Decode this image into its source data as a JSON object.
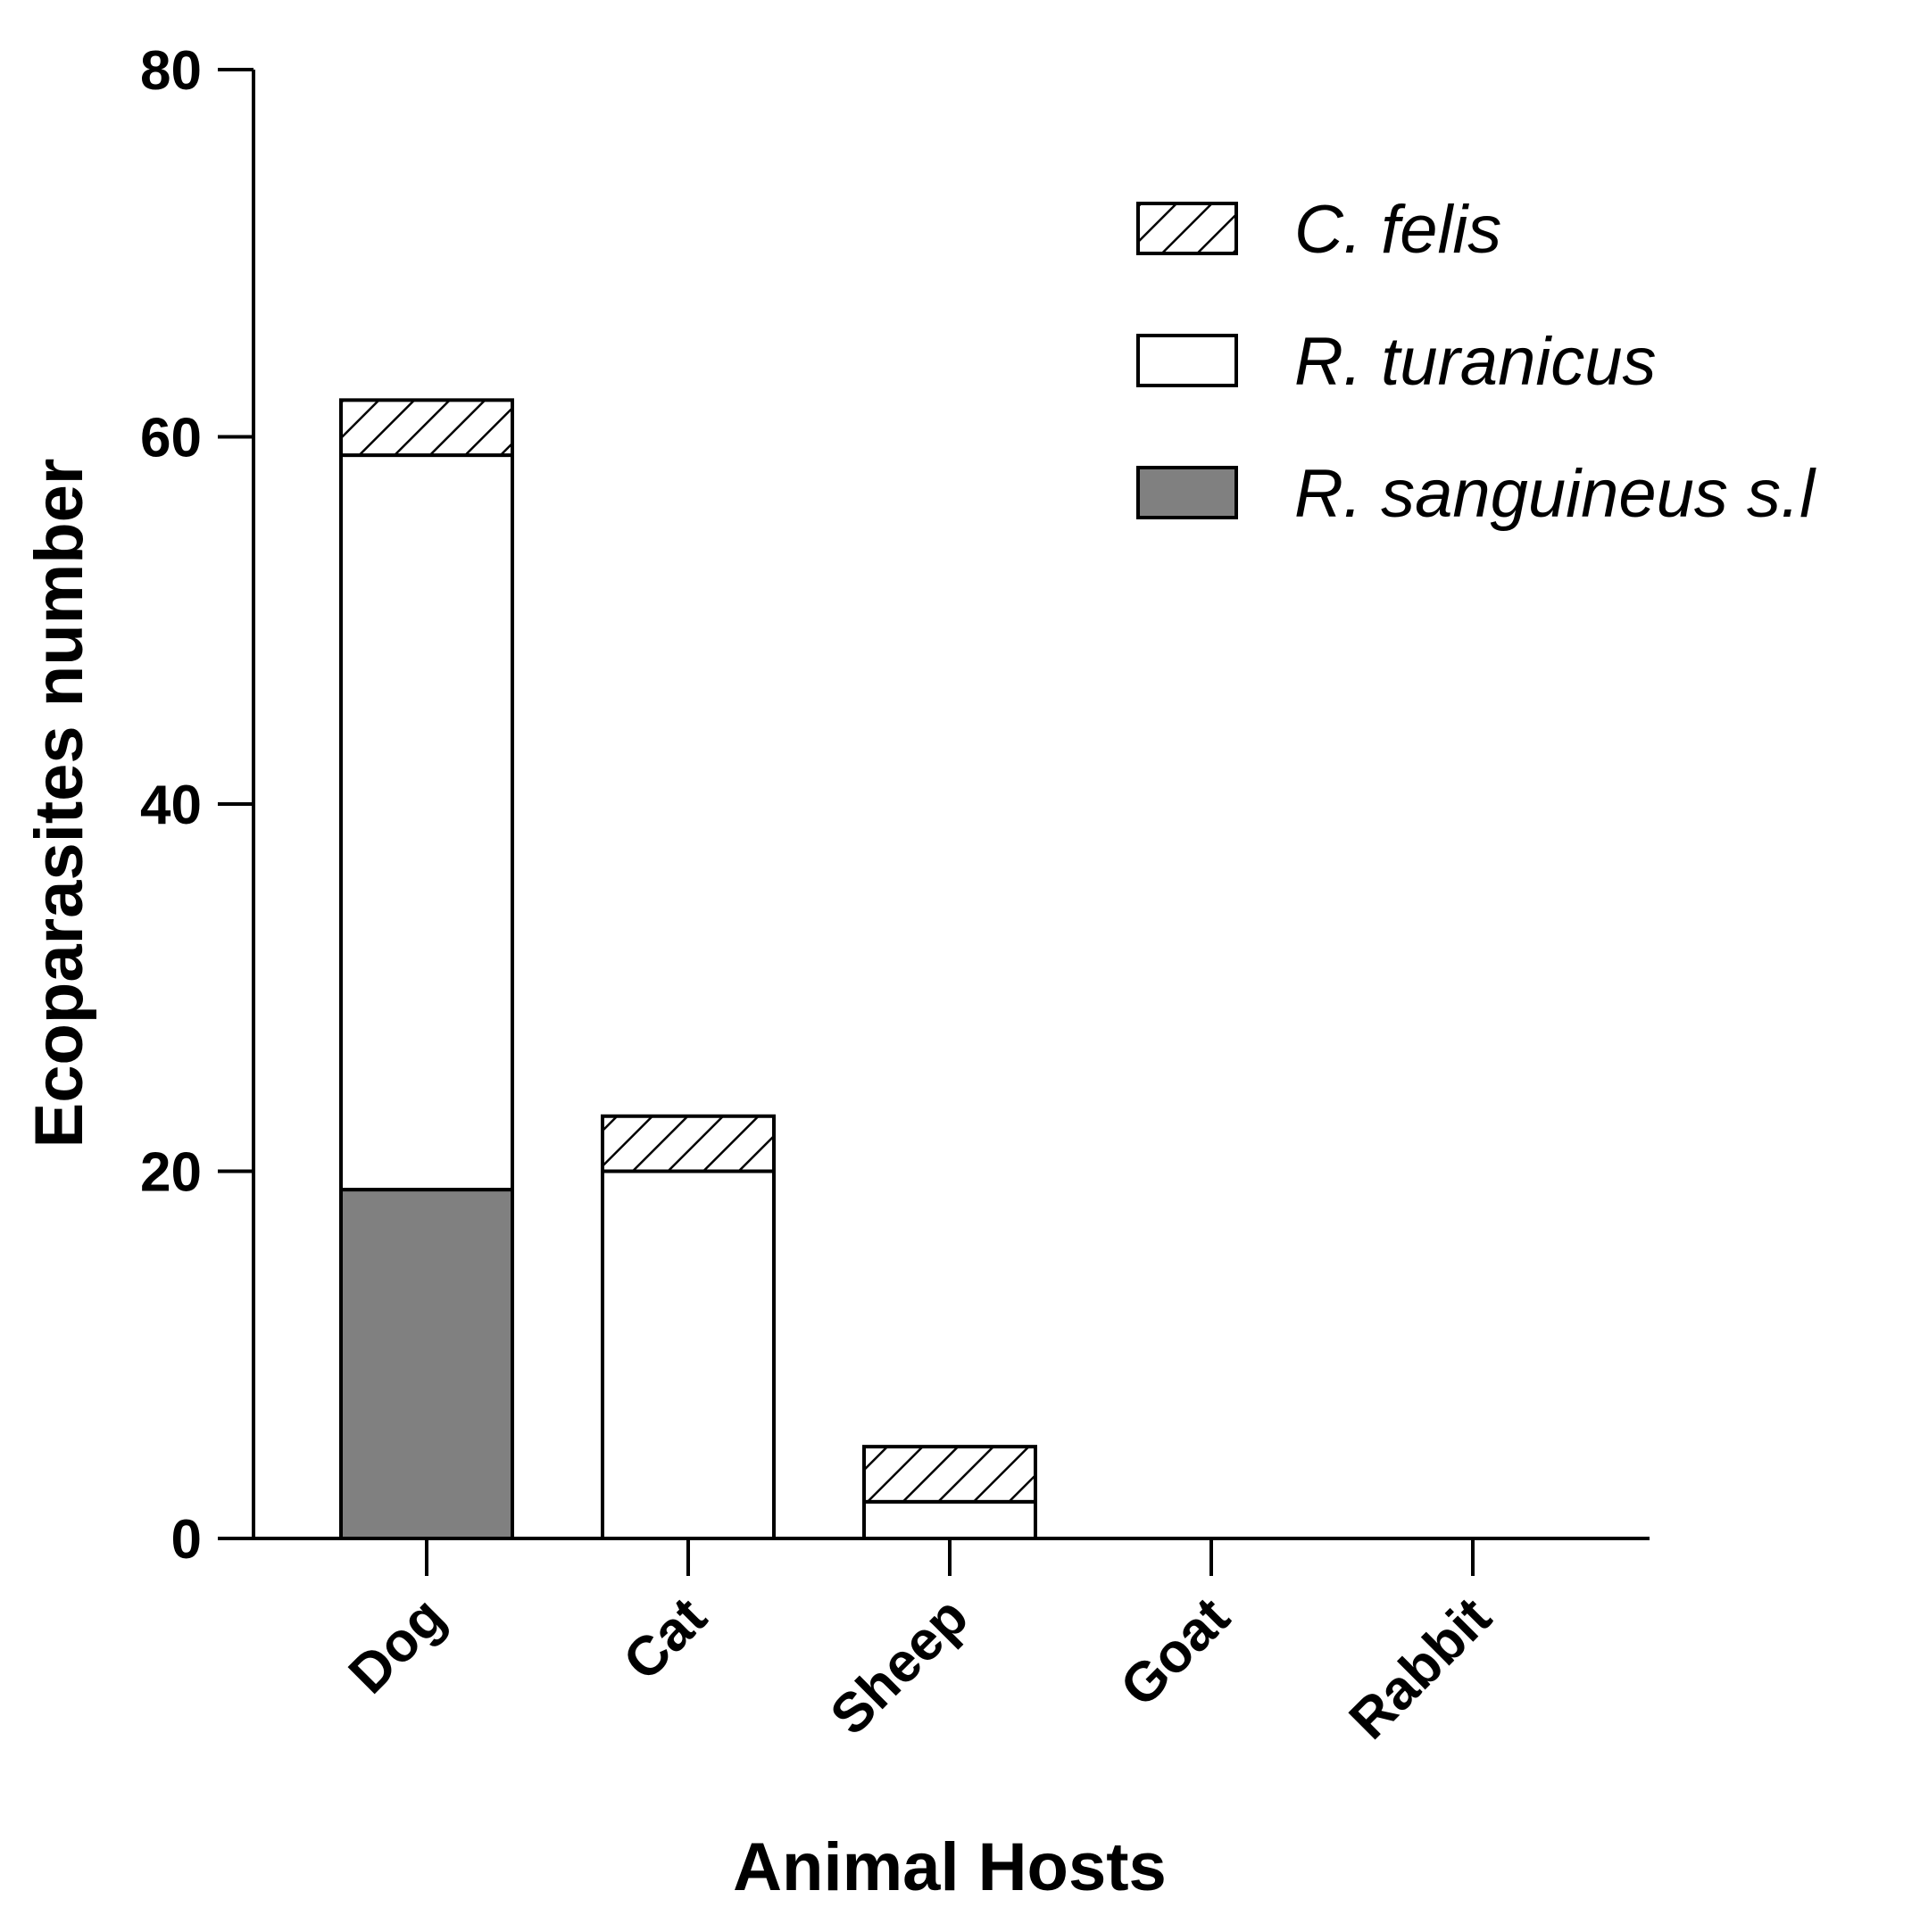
{
  "chart_data": {
    "type": "bar",
    "stacked": true,
    "categories": [
      "Dog",
      "Cat",
      "Sheep",
      "Goat",
      "Rabbit"
    ],
    "series": [
      {
        "name": "R. sanguineus s.l",
        "values": [
          19,
          0,
          0,
          0,
          0
        ],
        "fill": "#808080",
        "pattern": "solid"
      },
      {
        "name": "R. turanicus",
        "values": [
          40,
          20,
          2,
          0,
          0
        ],
        "fill": "#ffffff",
        "pattern": "solid"
      },
      {
        "name": "C. felis",
        "values": [
          3,
          3,
          3,
          0,
          0
        ],
        "fill": "#ffffff",
        "pattern": "hatch"
      }
    ],
    "legend_order": [
      "C. felis",
      "R. turanicus",
      "R. sanguineus s.l"
    ],
    "title": "",
    "xlabel": "Animal Hosts",
    "ylabel": "Ecoparasites number",
    "ylim": [
      0,
      80
    ],
    "yticks": [
      0,
      20,
      40,
      60,
      80
    ],
    "grid": false,
    "legend_position": "top-right"
  }
}
